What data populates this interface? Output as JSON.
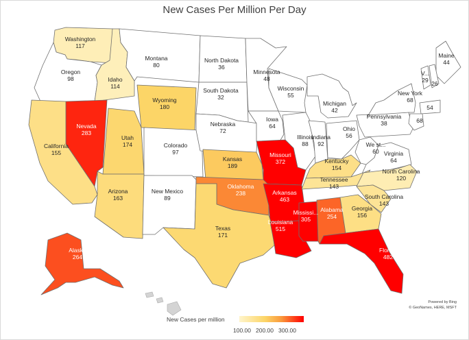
{
  "title": "New Cases Per Million Per Day",
  "attribution": [
    "Powered by Bing",
    "© GeoNames, HERE, MSFT"
  ],
  "legend": {
    "title": "New Cases per million",
    "ticks": [
      "100.00",
      "200.00",
      "300.00"
    ],
    "colors": [
      "#fff5cc",
      "#fcd567",
      "#fa9a3c",
      "#ff0000"
    ]
  },
  "chart_data": {
    "type": "choropleth",
    "title": "New Cases Per Million Per Day",
    "color_scale": {
      "min": 100,
      "mid": 200,
      "max": 300
    },
    "states": [
      {
        "name": "Washington",
        "value": "117"
      },
      {
        "name": "Oregon",
        "value": "98"
      },
      {
        "name": "Idaho",
        "value": "114"
      },
      {
        "name": "Montana",
        "value": "80"
      },
      {
        "name": "Wyoming",
        "value": "180"
      },
      {
        "name": "North Dakota",
        "value": "36"
      },
      {
        "name": "South Dakota",
        "value": "32"
      },
      {
        "name": "Minnesota",
        "value": "48"
      },
      {
        "name": "Wisconsin",
        "value": "55"
      },
      {
        "name": "Michigan",
        "value": "42"
      },
      {
        "name": "Nevada",
        "value": "283"
      },
      {
        "name": "Utah",
        "value": "174"
      },
      {
        "name": "California",
        "value": "155"
      },
      {
        "name": "Colorado",
        "value": "97"
      },
      {
        "name": "Nebraska",
        "value": "72"
      },
      {
        "name": "Iowa",
        "value": "64"
      },
      {
        "name": "Illinois",
        "value": "88"
      },
      {
        "name": "Indiana",
        "value": "92"
      },
      {
        "name": "Ohio",
        "value": "56"
      },
      {
        "name": "Pennsylvania",
        "value": "38"
      },
      {
        "name": "New York",
        "value": "68"
      },
      {
        "name": "Maine",
        "value": "44"
      },
      {
        "name": "V...",
        "value": "29"
      },
      {
        "name": "",
        "value": "26"
      },
      {
        "name": "",
        "value": "54"
      },
      {
        "name": "",
        "value": "68"
      },
      {
        "name": "Kansas",
        "value": "189"
      },
      {
        "name": "Missouri",
        "value": "372"
      },
      {
        "name": "Kentucky",
        "value": "154"
      },
      {
        "name": "We st...",
        "value": "60"
      },
      {
        "name": "Virginia",
        "value": "64"
      },
      {
        "name": "Arizona",
        "value": "163"
      },
      {
        "name": "New Mexico",
        "value": "89"
      },
      {
        "name": "Oklahoma",
        "value": "238"
      },
      {
        "name": "Arkansas",
        "value": "463"
      },
      {
        "name": "Tennessee",
        "value": "143"
      },
      {
        "name": "North Carolina",
        "value": "120"
      },
      {
        "name": "South Carolina",
        "value": "143"
      },
      {
        "name": "Texas",
        "value": "171"
      },
      {
        "name": "Louisiana",
        "value": "515"
      },
      {
        "name": "Mississi...",
        "value": "305"
      },
      {
        "name": "Alabama",
        "value": "254"
      },
      {
        "name": "Georgia",
        "value": "156"
      },
      {
        "name": "Florida",
        "value": "482"
      },
      {
        "name": "Alaska",
        "value": "264"
      }
    ]
  }
}
